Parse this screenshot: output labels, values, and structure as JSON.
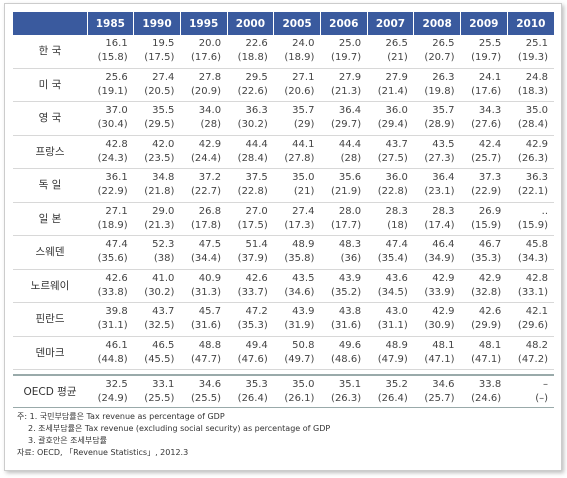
{
  "table": {
    "years": [
      "1985",
      "1990",
      "1995",
      "2000",
      "2005",
      "2006",
      "2007",
      "2008",
      "2009",
      "2010"
    ],
    "rows": [
      {
        "label": "한 국",
        "cells": [
          [
            "16.1",
            "(15.8)"
          ],
          [
            "19.5",
            "(17.5)"
          ],
          [
            "20.0",
            "(17.6)"
          ],
          [
            "22.6",
            "(18.8)"
          ],
          [
            "24.0",
            "(18.9)"
          ],
          [
            "25.0",
            "(19.7)"
          ],
          [
            "26.5",
            "(21)"
          ],
          [
            "26.5",
            "(20.7)"
          ],
          [
            "25.5",
            "(19.7)"
          ],
          [
            "25.1",
            "(19.3)"
          ]
        ]
      },
      {
        "label": "미 국",
        "cells": [
          [
            "25.6",
            "(19.1)"
          ],
          [
            "27.4",
            "(20.5)"
          ],
          [
            "27.8",
            "(20.9)"
          ],
          [
            "29.5",
            "(22.6)"
          ],
          [
            "27.1",
            "(20.6)"
          ],
          [
            "27.9",
            "(21.3)"
          ],
          [
            "27.9",
            "(21.4)"
          ],
          [
            "26.3",
            "(19.8)"
          ],
          [
            "24.1",
            "(17.6)"
          ],
          [
            "24.8",
            "(18.3)"
          ]
        ]
      },
      {
        "label": "영 국",
        "cells": [
          [
            "37.0",
            "(30.4)"
          ],
          [
            "35.5",
            "(29.5)"
          ],
          [
            "34.0",
            "(28)"
          ],
          [
            "36.3",
            "(30.2)"
          ],
          [
            "35.7",
            "(29)"
          ],
          [
            "36.4",
            "(29.7)"
          ],
          [
            "36.0",
            "(29.4)"
          ],
          [
            "35.7",
            "(28.9)"
          ],
          [
            "34.3",
            "(27.6)"
          ],
          [
            "35.0",
            "(28.4)"
          ]
        ]
      },
      {
        "label": "프랑스",
        "cells": [
          [
            "42.8",
            "(24.3)"
          ],
          [
            "42.0",
            "(23.5)"
          ],
          [
            "42.9",
            "(24.4)"
          ],
          [
            "44.4",
            "(28.4)"
          ],
          [
            "44.1",
            "(27.8)"
          ],
          [
            "44.4",
            "(28)"
          ],
          [
            "43.7",
            "(27.5)"
          ],
          [
            "43.5",
            "(27.3)"
          ],
          [
            "42.4",
            "(25.7)"
          ],
          [
            "42.9",
            "(26.3)"
          ]
        ]
      },
      {
        "label": "독 일",
        "cells": [
          [
            "36.1",
            "(22.9)"
          ],
          [
            "34.8",
            "(21.8)"
          ],
          [
            "37.2",
            "(22.7)"
          ],
          [
            "37.5",
            "(22.8)"
          ],
          [
            "35.0",
            "(21)"
          ],
          [
            "35.6",
            "(21.9)"
          ],
          [
            "36.0",
            "(22.8)"
          ],
          [
            "36.4",
            "(23.1)"
          ],
          [
            "37.3",
            "(22.9)"
          ],
          [
            "36.3",
            "(22.1)"
          ]
        ]
      },
      {
        "label": "일 본",
        "cells": [
          [
            "27.1",
            "(18.9)"
          ],
          [
            "29.0",
            "(21.3)"
          ],
          [
            "26.8",
            "(17.8)"
          ],
          [
            "27.0",
            "(17.5)"
          ],
          [
            "27.4",
            "(17.3)"
          ],
          [
            "28.0",
            "(17.7)"
          ],
          [
            "28.3",
            "(18)"
          ],
          [
            "28.3",
            "(17.4)"
          ],
          [
            "26.9",
            "(15.9)"
          ],
          [
            "..",
            "(15.9)"
          ]
        ]
      },
      {
        "label": "스웨덴",
        "cells": [
          [
            "47.4",
            "(35.6)"
          ],
          [
            "52.3",
            "(38)"
          ],
          [
            "47.5",
            "(34.4)"
          ],
          [
            "51.4",
            "(37.9)"
          ],
          [
            "48.9",
            "(35.8)"
          ],
          [
            "48.3",
            "(36)"
          ],
          [
            "47.4",
            "(35.4)"
          ],
          [
            "46.4",
            "(34.9)"
          ],
          [
            "46.7",
            "(35.3)"
          ],
          [
            "45.8",
            "(34.3)"
          ]
        ]
      },
      {
        "label": "노르웨이",
        "cells": [
          [
            "42.6",
            "(33.8)"
          ],
          [
            "41.0",
            "(30.2)"
          ],
          [
            "40.9",
            "(31.3)"
          ],
          [
            "42.6",
            "(33.7)"
          ],
          [
            "43.5",
            "(34.6)"
          ],
          [
            "43.9",
            "(35.2)"
          ],
          [
            "43.6",
            "(34.5)"
          ],
          [
            "42.9",
            "(33.9)"
          ],
          [
            "42.9",
            "(32.8)"
          ],
          [
            "42.8",
            "(33.1)"
          ]
        ]
      },
      {
        "label": "핀란드",
        "cells": [
          [
            "39.8",
            "(31.1)"
          ],
          [
            "43.7",
            "(32.5)"
          ],
          [
            "45.7",
            "(31.6)"
          ],
          [
            "47.2",
            "(35.3)"
          ],
          [
            "43.9",
            "(31.9)"
          ],
          [
            "43.8",
            "(31.6)"
          ],
          [
            "43.0",
            "(31.1)"
          ],
          [
            "42.9",
            "(30.9)"
          ],
          [
            "42.6",
            "(29.9)"
          ],
          [
            "42.1",
            "(29.6)"
          ]
        ]
      },
      {
        "label": "덴마크",
        "cells": [
          [
            "46.1",
            "(44.8)"
          ],
          [
            "46.5",
            "(45.5)"
          ],
          [
            "48.8",
            "(47.7)"
          ],
          [
            "49.4",
            "(47.6)"
          ],
          [
            "50.8",
            "(49.7)"
          ],
          [
            "49.6",
            "(48.6)"
          ],
          [
            "48.9",
            "(47.9)"
          ],
          [
            "48.1",
            "(47.1)"
          ],
          [
            "48.1",
            "(47.1)"
          ],
          [
            "48.2",
            "(47.2)"
          ]
        ]
      }
    ],
    "oecd": {
      "label": "OECD 평균",
      "cells": [
        [
          "32.5",
          "(24.9)"
        ],
        [
          "33.1",
          "(25.5)"
        ],
        [
          "34.6",
          "(25.5)"
        ],
        [
          "35.3",
          "(26.4)"
        ],
        [
          "35.0",
          "(26.1)"
        ],
        [
          "35.1",
          "(26.3)"
        ],
        [
          "35.2",
          "(26.4)"
        ],
        [
          "34.6",
          "(25.7)"
        ],
        [
          "33.8",
          "(24.6)"
        ],
        [
          "–",
          "(–)"
        ]
      ]
    }
  },
  "notes": {
    "lines": [
      "주: 1. 국민부담률은 Tax revenue as percentage of GDP",
      "2. 조세부담률은 Tax revenue (excluding social security) as percentage of GDP",
      "3. 괄호안은 조세부담률"
    ],
    "source": "자료: OECD, 「Revenue Statistics」, 2012.3"
  }
}
